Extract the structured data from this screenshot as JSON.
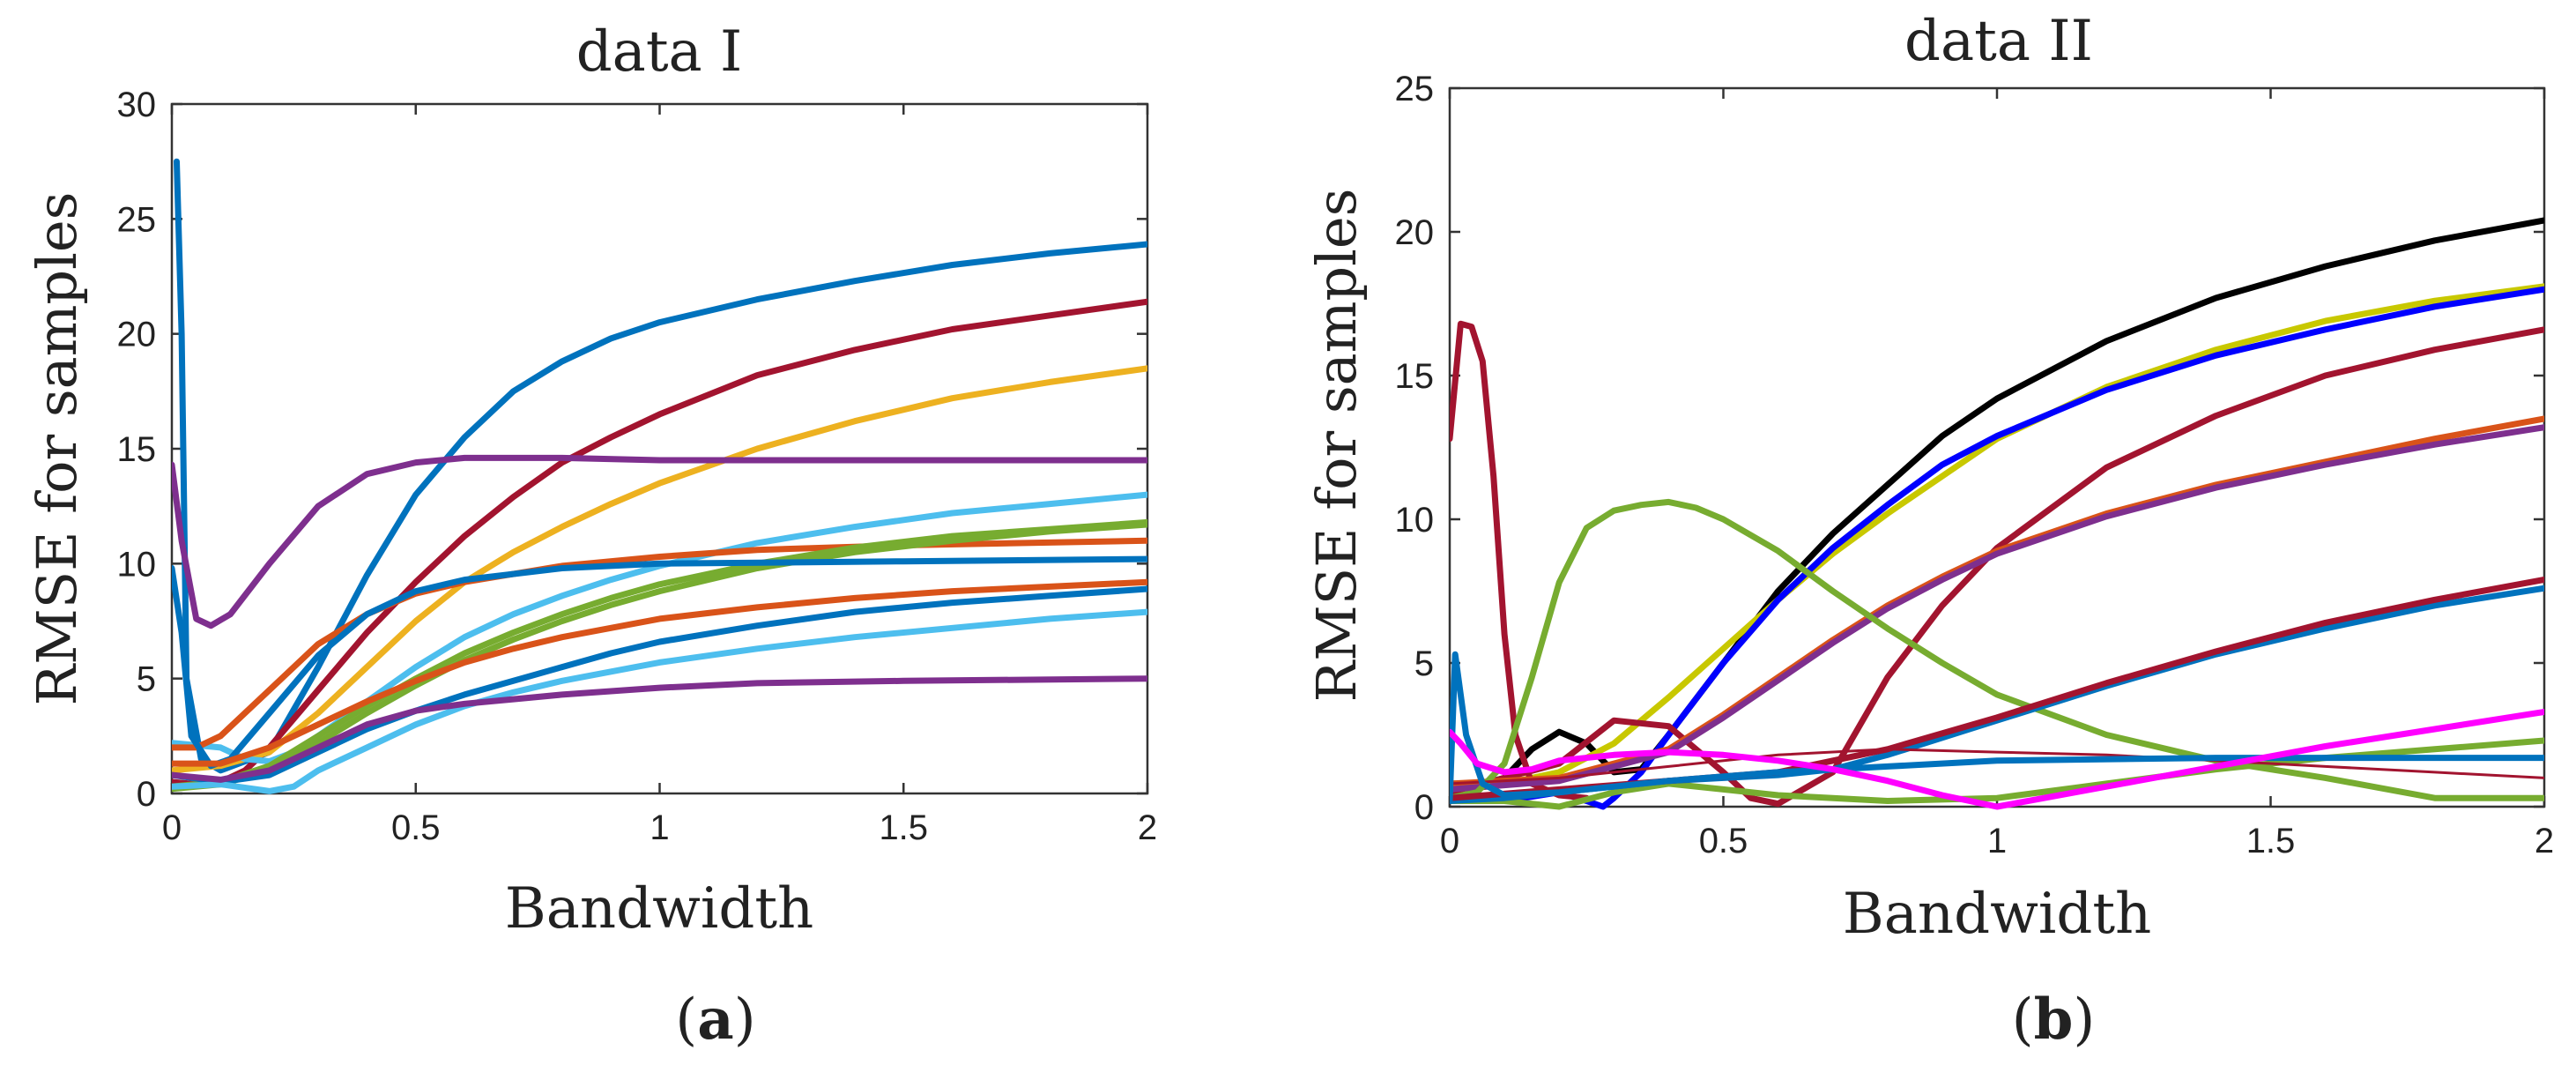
{
  "chart_data": [
    {
      "type": "line",
      "title": "data I",
      "xlabel": "Bandwidth",
      "ylabel": "RMSE for samples",
      "xlim": [
        0,
        2
      ],
      "ylim": [
        0,
        30
      ],
      "xticks": [
        "0",
        "0.5",
        "1",
        "1.5",
        "2"
      ],
      "yticks": [
        "0",
        "5",
        "10",
        "15",
        "20",
        "25",
        "30"
      ],
      "xtick_values": [
        0,
        0.5,
        1,
        1.5,
        2
      ],
      "ytick_values": [
        0,
        5,
        10,
        15,
        20,
        25,
        30
      ],
      "caption_open": "(",
      "caption_letter": "a",
      "caption_close": ")",
      "series": [
        {
          "name": "blue-1",
          "color": "#0072BD",
          "x": [
            0.01,
            0.02,
            0.03,
            0.06,
            0.1,
            0.2,
            0.3,
            0.4,
            0.5,
            0.6,
            0.7,
            0.8,
            0.9,
            1.0,
            1.2,
            1.4,
            1.6,
            1.8,
            2.0
          ],
          "y": [
            27.5,
            20,
            5,
            1.5,
            1.0,
            1.8,
            5.5,
            9.5,
            13,
            15.5,
            17.5,
            18.8,
            19.8,
            20.5,
            21.5,
            22.3,
            23.0,
            23.5,
            23.9
          ]
        },
        {
          "name": "red-1",
          "color": "#A2142F",
          "x": [
            0.0,
            0.05,
            0.1,
            0.15,
            0.2,
            0.3,
            0.4,
            0.5,
            0.6,
            0.7,
            0.8,
            0.9,
            1.0,
            1.2,
            1.4,
            1.6,
            1.8,
            2.0
          ],
          "y": [
            0.5,
            0.4,
            0.5,
            1.0,
            2.0,
            4.5,
            7.0,
            9.2,
            11.2,
            12.9,
            14.4,
            15.5,
            16.5,
            18.2,
            19.3,
            20.2,
            20.8,
            21.4
          ]
        },
        {
          "name": "yellow",
          "color": "#EDB120",
          "x": [
            0.0,
            0.1,
            0.2,
            0.3,
            0.4,
            0.5,
            0.6,
            0.7,
            0.8,
            0.9,
            1.0,
            1.2,
            1.4,
            1.6,
            1.8,
            2.0
          ],
          "y": [
            1.0,
            1.2,
            1.8,
            3.5,
            5.5,
            7.5,
            9.2,
            10.5,
            11.6,
            12.6,
            13.5,
            15.0,
            16.2,
            17.2,
            17.9,
            18.5
          ]
        },
        {
          "name": "purple-1",
          "color": "#7E2F8E",
          "x": [
            0.0,
            0.02,
            0.05,
            0.08,
            0.12,
            0.2,
            0.3,
            0.4,
            0.5,
            0.6,
            0.7,
            0.8,
            1.0,
            1.2,
            1.5,
            2.0
          ],
          "y": [
            14.3,
            11,
            7.6,
            7.3,
            7.8,
            10.0,
            12.5,
            13.9,
            14.4,
            14.6,
            14.6,
            14.6,
            14.5,
            14.5,
            14.5,
            14.5
          ]
        },
        {
          "name": "cyan-1",
          "color": "#4DBEEE",
          "x": [
            0.0,
            0.1,
            0.15,
            0.2,
            0.25,
            0.3,
            0.4,
            0.5,
            0.6,
            0.7,
            0.8,
            0.9,
            1.0,
            1.2,
            1.4,
            1.6,
            1.8,
            2.0
          ],
          "y": [
            2.2,
            2.0,
            1.5,
            1.4,
            1.8,
            2.5,
            4.0,
            5.5,
            6.8,
            7.8,
            8.6,
            9.3,
            9.9,
            10.9,
            11.6,
            12.2,
            12.6,
            13.0
          ]
        },
        {
          "name": "orange-1",
          "color": "#D95319",
          "x": [
            0.0,
            0.05,
            0.1,
            0.2,
            0.3,
            0.4,
            0.5,
            0.6,
            0.8,
            1.0,
            1.2,
            1.5,
            2.0
          ],
          "y": [
            2.0,
            2.0,
            2.5,
            4.5,
            6.5,
            7.8,
            8.7,
            9.2,
            9.9,
            10.3,
            10.6,
            10.8,
            11.0
          ]
        },
        {
          "name": "green-1",
          "color": "#77AC30",
          "x": [
            0.0,
            0.1,
            0.2,
            0.3,
            0.4,
            0.5,
            0.6,
            0.7,
            0.8,
            0.9,
            1.0,
            1.2,
            1.4,
            1.6,
            1.8,
            2.0
          ],
          "y": [
            0.3,
            0.5,
            1.2,
            2.5,
            3.8,
            5.0,
            6.1,
            7.0,
            7.8,
            8.5,
            9.1,
            10.0,
            10.7,
            11.2,
            11.5,
            11.8
          ]
        },
        {
          "name": "green-2",
          "color": "#77AC30",
          "x": [
            0.0,
            0.1,
            0.2,
            0.3,
            0.4,
            0.5,
            0.6,
            0.7,
            0.8,
            0.9,
            1.0,
            1.2,
            1.4,
            1.6,
            1.8,
            2.0
          ],
          "y": [
            0.2,
            0.4,
            1.0,
            2.2,
            3.5,
            4.7,
            5.8,
            6.7,
            7.5,
            8.2,
            8.8,
            9.8,
            10.5,
            11.0,
            11.4,
            11.7
          ]
        },
        {
          "name": "blue-2",
          "color": "#0072BD",
          "x": [
            0.0,
            0.02,
            0.04,
            0.08,
            0.12,
            0.2,
            0.3,
            0.4,
            0.5,
            0.6,
            0.8,
            1.0,
            1.5,
            2.0
          ],
          "y": [
            9.8,
            7,
            2.5,
            1.2,
            1.5,
            3.5,
            6.0,
            7.8,
            8.8,
            9.3,
            9.8,
            10.0,
            10.1,
            10.2
          ]
        },
        {
          "name": "orange-2",
          "color": "#D95319",
          "x": [
            0.0,
            0.1,
            0.2,
            0.3,
            0.4,
            0.5,
            0.6,
            0.7,
            0.8,
            1.0,
            1.2,
            1.4,
            1.6,
            1.8,
            2.0
          ],
          "y": [
            1.3,
            1.3,
            2.0,
            3.0,
            4.0,
            4.9,
            5.7,
            6.3,
            6.8,
            7.6,
            8.1,
            8.5,
            8.8,
            9.0,
            9.2
          ]
        },
        {
          "name": "blue-3",
          "color": "#0072BD",
          "x": [
            0.0,
            0.1,
            0.2,
            0.3,
            0.4,
            0.5,
            0.6,
            0.7,
            0.8,
            0.9,
            1.0,
            1.2,
            1.4,
            1.6,
            1.8,
            2.0
          ],
          "y": [
            0.8,
            0.5,
            0.8,
            1.8,
            2.8,
            3.6,
            4.3,
            4.9,
            5.5,
            6.1,
            6.6,
            7.3,
            7.9,
            8.3,
            8.6,
            8.9
          ]
        },
        {
          "name": "cyan-2",
          "color": "#4DBEEE",
          "x": [
            0.0,
            0.1,
            0.2,
            0.25,
            0.3,
            0.4,
            0.5,
            0.6,
            0.7,
            0.8,
            1.0,
            1.2,
            1.4,
            1.6,
            1.8,
            2.0
          ],
          "y": [
            0.3,
            0.4,
            0.1,
            0.3,
            1.0,
            2.0,
            3.0,
            3.8,
            4.4,
            4.9,
            5.7,
            6.3,
            6.8,
            7.2,
            7.6,
            7.9
          ]
        },
        {
          "name": "purple-2",
          "color": "#7E2F8E",
          "x": [
            0.0,
            0.1,
            0.2,
            0.3,
            0.4,
            0.5,
            0.6,
            0.7,
            0.8,
            1.0,
            1.2,
            1.5,
            2.0
          ],
          "y": [
            0.8,
            0.6,
            1.0,
            2.0,
            3.0,
            3.6,
            3.9,
            4.1,
            4.3,
            4.6,
            4.8,
            4.9,
            5.0
          ]
        }
      ]
    },
    {
      "type": "line",
      "title": "data II",
      "xlabel": "Bandwidth",
      "ylabel": "RMSE for samples",
      "xlim": [
        0,
        2
      ],
      "ylim": [
        0,
        25
      ],
      "xticks": [
        "0",
        "0.5",
        "1",
        "1.5",
        "2"
      ],
      "yticks": [
        "0",
        "5",
        "10",
        "15",
        "20",
        "25"
      ],
      "xtick_values": [
        0,
        0.5,
        1,
        1.5,
        2
      ],
      "ytick_values": [
        0,
        5,
        10,
        15,
        20,
        25
      ],
      "caption_open": "(",
      "caption_letter": "b",
      "caption_close": ")",
      "series": [
        {
          "name": "black",
          "color": "#000000",
          "x": [
            0.0,
            0.1,
            0.15,
            0.2,
            0.25,
            0.3,
            0.35,
            0.4,
            0.5,
            0.6,
            0.7,
            0.8,
            0.9,
            1.0,
            1.2,
            1.4,
            1.6,
            1.8,
            2.0
          ],
          "y": [
            0.5,
            1.0,
            2.0,
            2.6,
            2.2,
            1.2,
            1.3,
            2.5,
            5.0,
            7.5,
            9.5,
            11.2,
            12.9,
            14.2,
            16.2,
            17.7,
            18.8,
            19.7,
            20.4
          ]
        },
        {
          "name": "yellow",
          "color": "#C8C800",
          "x": [
            0.0,
            0.1,
            0.2,
            0.3,
            0.4,
            0.5,
            0.6,
            0.7,
            0.8,
            0.9,
            1.0,
            1.2,
            1.4,
            1.6,
            1.8,
            2.0
          ],
          "y": [
            0.5,
            0.8,
            1.2,
            2.2,
            3.8,
            5.5,
            7.2,
            8.8,
            10.2,
            11.5,
            12.8,
            14.6,
            15.9,
            16.9,
            17.6,
            18.1
          ]
        },
        {
          "name": "blue",
          "color": "#0000FF",
          "x": [
            0.0,
            0.1,
            0.2,
            0.25,
            0.28,
            0.3,
            0.35,
            0.4,
            0.5,
            0.6,
            0.7,
            0.8,
            0.9,
            1.0,
            1.2,
            1.4,
            1.6,
            1.8,
            2.0
          ],
          "y": [
            0.2,
            0.2,
            0.5,
            0.2,
            0.0,
            0.3,
            1.2,
            2.5,
            5.0,
            7.2,
            9.0,
            10.5,
            11.9,
            12.9,
            14.5,
            15.7,
            16.6,
            17.4,
            18.0
          ]
        },
        {
          "name": "red-1",
          "color": "#A2142F",
          "x": [
            0.0,
            0.02,
            0.04,
            0.06,
            0.08,
            0.1,
            0.12,
            0.15,
            0.2,
            0.25
          ],
          "y": [
            12.8,
            16.8,
            16.7,
            15.5,
            11.5,
            6.0,
            2.5,
            0.8,
            0.4,
            0.3
          ]
        },
        {
          "name": "red-2",
          "color": "#A2142F",
          "x": [
            0.0,
            0.2,
            0.3,
            0.4,
            0.5,
            0.55,
            0.6,
            0.7,
            0.8,
            0.9,
            1.0,
            1.2,
            1.4,
            1.6,
            1.8,
            2.0
          ],
          "y": [
            0.5,
            1.5,
            3.0,
            2.8,
            1.2,
            0.3,
            0.1,
            1.2,
            4.5,
            7.0,
            9.0,
            11.8,
            13.6,
            15.0,
            15.9,
            16.6
          ]
        },
        {
          "name": "orange",
          "color": "#D95319",
          "x": [
            0.0,
            0.2,
            0.4,
            0.5,
            0.6,
            0.7,
            0.8,
            0.9,
            1.0,
            1.2,
            1.4,
            1.6,
            1.8,
            2.0
          ],
          "y": [
            0.8,
            1.0,
            2.0,
            3.2,
            4.5,
            5.8,
            7.0,
            8.0,
            8.9,
            10.2,
            11.2,
            12.0,
            12.8,
            13.5
          ]
        },
        {
          "name": "purple",
          "color": "#7E2F8E",
          "x": [
            0.0,
            0.2,
            0.4,
            0.5,
            0.6,
            0.7,
            0.8,
            0.9,
            1.0,
            1.2,
            1.4,
            1.6,
            1.8,
            2.0
          ],
          "y": [
            0.6,
            0.9,
            1.9,
            3.1,
            4.4,
            5.7,
            6.9,
            7.9,
            8.8,
            10.1,
            11.1,
            11.9,
            12.6,
            13.2
          ]
        },
        {
          "name": "green-1",
          "color": "#77AC30",
          "x": [
            0.0,
            0.05,
            0.1,
            0.15,
            0.2,
            0.25,
            0.3,
            0.35,
            0.4,
            0.45,
            0.5,
            0.6,
            0.7,
            0.8,
            0.9,
            1.0,
            1.2,
            1.4,
            1.6,
            1.8,
            2.0
          ],
          "y": [
            0.3,
            0.5,
            1.5,
            4.5,
            7.8,
            9.7,
            10.3,
            10.5,
            10.6,
            10.4,
            10.0,
            8.9,
            7.5,
            6.2,
            5.0,
            3.9,
            2.5,
            1.6,
            1.0,
            0.3,
            0.3
          ]
        },
        {
          "name": "green-2",
          "color": "#77AC30",
          "x": [
            0.0,
            0.1,
            0.2,
            0.3,
            0.4,
            0.5,
            0.6,
            0.8,
            1.0,
            1.2,
            1.4,
            1.6,
            1.8,
            2.0
          ],
          "y": [
            0.2,
            0.2,
            0.0,
            0.5,
            0.8,
            0.6,
            0.4,
            0.2,
            0.3,
            0.8,
            1.3,
            1.7,
            2.0,
            2.3
          ]
        },
        {
          "name": "blue-2",
          "color": "#0072BD",
          "x": [
            0.0,
            0.1,
            0.2,
            0.3,
            0.4,
            0.5,
            0.6,
            0.7,
            0.8,
            0.9,
            1.0,
            1.2,
            1.4,
            1.6,
            1.8,
            2.0
          ],
          "y": [
            0.2,
            0.3,
            0.5,
            0.7,
            0.9,
            1.0,
            1.1,
            1.3,
            1.8,
            2.4,
            3.0,
            4.2,
            5.3,
            6.2,
            7.0,
            7.6
          ]
        },
        {
          "name": "red-3",
          "color": "#A2142F",
          "x": [
            0.0,
            0.2,
            0.4,
            0.6,
            0.8,
            1.0,
            1.2,
            1.4,
            1.6,
            1.8,
            2.0
          ],
          "y": [
            0.3,
            0.6,
            0.9,
            1.2,
            2.0,
            3.1,
            4.3,
            5.4,
            6.4,
            7.2,
            7.9
          ]
        },
        {
          "name": "red-thin",
          "color": "#A2142F",
          "x": [
            0.0,
            0.2,
            0.4,
            0.6,
            0.8,
            1.0,
            1.2,
            1.4,
            1.6,
            1.8,
            2.0
          ],
          "y": [
            0.8,
            1.0,
            1.4,
            1.8,
            2.0,
            1.9,
            1.8,
            1.6,
            1.4,
            1.2,
            1.0
          ]
        },
        {
          "name": "blue-flat",
          "color": "#0072BD",
          "x": [
            0.0,
            0.01,
            0.03,
            0.06,
            0.1,
            0.2,
            0.4,
            0.6,
            0.8,
            1.0,
            1.4,
            2.0
          ],
          "y": [
            0.2,
            5.3,
            2.5,
            0.8,
            0.4,
            0.5,
            0.9,
            1.2,
            1.4,
            1.6,
            1.7,
            1.7
          ]
        },
        {
          "name": "magenta",
          "color": "#FF00FF",
          "x": [
            0.0,
            0.02,
            0.05,
            0.1,
            0.15,
            0.2,
            0.3,
            0.4,
            0.5,
            0.6,
            0.7,
            0.8,
            0.9,
            1.0,
            1.2,
            1.4,
            1.6,
            1.8,
            2.0
          ],
          "y": [
            2.6,
            2.2,
            1.5,
            1.2,
            1.3,
            1.6,
            1.8,
            1.9,
            1.8,
            1.6,
            1.3,
            0.9,
            0.4,
            0.0,
            0.7,
            1.4,
            2.1,
            2.7,
            3.3
          ]
        }
      ]
    }
  ]
}
